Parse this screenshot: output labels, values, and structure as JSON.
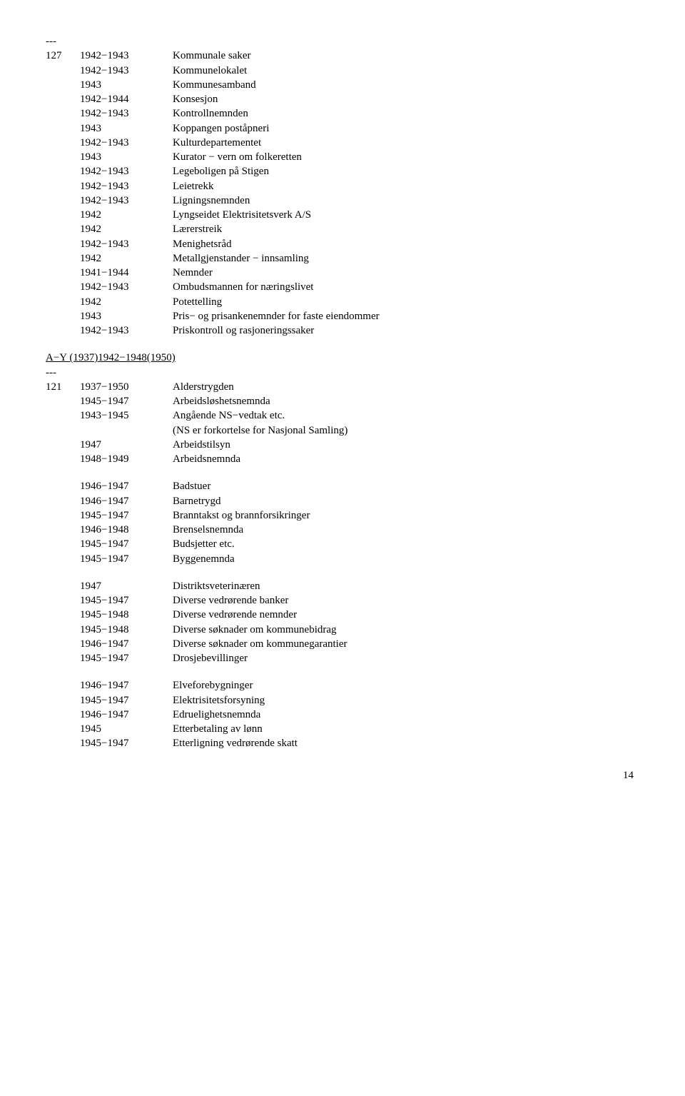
{
  "dashes": "---",
  "block1": {
    "id": "127",
    "rows": [
      {
        "yr": "1942−1943",
        "txt": "Kommunale saker"
      },
      {
        "yr": "1942−1943",
        "txt": "Kommunelokalet"
      },
      {
        "yr": "1943",
        "txt": "Kommunesamband"
      },
      {
        "yr": "1942−1944",
        "txt": "Konsesjon"
      },
      {
        "yr": "1942−1943",
        "txt": "Kontrollnemnden"
      },
      {
        "yr": "1943",
        "txt": "Koppangen poståpneri"
      },
      {
        "yr": "1942−1943",
        "txt": "Kulturdepartementet"
      },
      {
        "yr": "1943",
        "txt": "Kurator − vern om folkeretten"
      },
      {
        "yr": "1942−1943",
        "txt": "Legeboligen på Stigen"
      },
      {
        "yr": "1942−1943",
        "txt": "Leietrekk"
      },
      {
        "yr": "1942−1943",
        "txt": "Ligningsnemnden"
      },
      {
        "yr": "1942",
        "txt": "Lyngseidet Elektrisitetsverk A/S"
      },
      {
        "yr": "1942",
        "txt": "Lærerstreik"
      },
      {
        "yr": "1942−1943",
        "txt": "Menighetsråd"
      },
      {
        "yr": "1942",
        "txt": "Metallgjenstander − innsamling"
      },
      {
        "yr": "1941−1944",
        "txt": "Nemnder"
      },
      {
        "yr": "1942−1943",
        "txt": "Ombudsmannen for næringslivet"
      },
      {
        "yr": "1942",
        "txt": "Potettelling"
      },
      {
        "yr": "1943",
        "txt": "Pris− og prisankenemnder for faste eiendommer"
      },
      {
        "yr": "1942−1943",
        "txt": "Priskontroll og rasjoneringssaker"
      }
    ]
  },
  "sectionTitle": "A−Y (1937)1942−1948(1950)",
  "block2": {
    "id": "121",
    "rows": [
      {
        "yr": "1937−1950",
        "txt": "Alderstrygden"
      },
      {
        "yr": "1945−1947",
        "txt": "Arbeidsløshetsnemnda"
      },
      {
        "yr": "1943−1945",
        "txt": "Angående NS−vedtak etc."
      },
      {
        "yr": "",
        "txt": "(NS er forkortelse for Nasjonal Samling)"
      },
      {
        "yr": "1947",
        "txt": "Arbeidstilsyn"
      },
      {
        "yr": "1948−1949",
        "txt": "Arbeidsnemnda"
      }
    ]
  },
  "block3": {
    "rows": [
      {
        "yr": "1946−1947",
        "txt": "Badstuer"
      },
      {
        "yr": "1946−1947",
        "txt": "Barnetrygd"
      },
      {
        "yr": "1945−1947",
        "txt": "Branntakst og brannforsikringer"
      },
      {
        "yr": "1946−1948",
        "txt": "Brenselsnemnda"
      },
      {
        "yr": "1945−1947",
        "txt": "Budsjetter etc."
      },
      {
        "yr": "1945−1947",
        "txt": "Byggenemnda"
      }
    ]
  },
  "block4": {
    "rows": [
      {
        "yr": "1947",
        "txt": "Distriktsveterinæren"
      },
      {
        "yr": "1945−1947",
        "txt": "Diverse vedrørende banker"
      },
      {
        "yr": "1945−1948",
        "txt": "Diverse vedrørende nemnder"
      },
      {
        "yr": "1945−1948",
        "txt": "Diverse søknader om kommunebidrag"
      },
      {
        "yr": "1946−1947",
        "txt": "Diverse søknader om kommunegarantier"
      },
      {
        "yr": "1945−1947",
        "txt": "Drosjebevillinger"
      }
    ]
  },
  "block5": {
    "rows": [
      {
        "yr": "1946−1947",
        "txt": "Elveforebygninger"
      },
      {
        "yr": "1945−1947",
        "txt": "Elektrisitetsforsyning"
      },
      {
        "yr": "1946−1947",
        "txt": "Edruelighetsnemnda"
      },
      {
        "yr": "1945",
        "txt": "Etterbetaling av lønn"
      },
      {
        "yr": "1945−1947",
        "txt": "Etterligning vedrørende skatt"
      }
    ]
  },
  "pageNumber": "14"
}
